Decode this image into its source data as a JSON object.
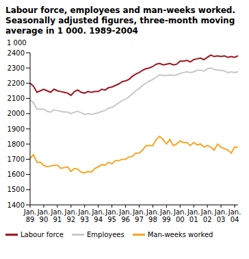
{
  "chart_data": {
    "type": "line",
    "title": "Labour force, employees and man-weeks worked. Seasonally adjusted figures, three-month moving average in 1 000. 1989-2004",
    "y_label": "1 000",
    "categories": [
      "Jan. 89",
      null,
      null,
      null,
      "Jan. 90",
      null,
      null,
      null,
      "Jan. 91",
      null,
      null,
      null,
      "Jan. 92",
      null,
      null,
      null,
      "Jan. 93",
      null,
      null,
      null,
      "Jan. 94",
      null,
      null,
      null,
      "Jan. 95",
      null,
      null,
      null,
      "Jan. 96",
      null,
      null,
      null,
      "Jan. 97",
      null,
      null,
      null,
      "Jan. 98",
      null,
      null,
      null,
      "Jan. 99",
      null,
      null,
      null,
      "Jan. 00",
      null,
      null,
      null,
      "Jan. 01",
      null,
      null,
      null,
      "Jan. 02",
      null,
      null,
      null,
      "Jan. 03",
      null,
      null,
      null,
      "Jan. 04",
      null
    ],
    "series": [
      {
        "name": "Labour force",
        "color": "#a0141e",
        "values": [
          2200,
          2180,
          2140,
          2150,
          2160,
          2150,
          2140,
          2160,
          2150,
          2145,
          2140,
          2135,
          2120,
          2145,
          2155,
          2140,
          2135,
          2145,
          2140,
          2145,
          2145,
          2160,
          2155,
          2170,
          2175,
          2185,
          2195,
          2210,
          2215,
          2225,
          2245,
          2260,
          2270,
          2285,
          2295,
          2300,
          2310,
          2325,
          2330,
          2320,
          2325,
          2330,
          2320,
          2325,
          2345,
          2345,
          2350,
          2340,
          2355,
          2360,
          2365,
          2355,
          2370,
          2385,
          2375,
          2380,
          2375,
          2380,
          2370,
          2375,
          2370,
          2380
        ]
      },
      {
        "name": "Employees",
        "color": "#c8c8c8",
        "values": [
          2090,
          2070,
          2030,
          2030,
          2030,
          2015,
          2010,
          2025,
          2020,
          2015,
          2010,
          2010,
          2000,
          2010,
          2015,
          2005,
          1995,
          2000,
          1995,
          2000,
          2005,
          2015,
          2020,
          2035,
          2040,
          2055,
          2070,
          2085,
          2095,
          2110,
          2130,
          2150,
          2165,
          2185,
          2200,
          2215,
          2225,
          2240,
          2255,
          2250,
          2250,
          2255,
          2250,
          2255,
          2265,
          2270,
          2275,
          2270,
          2275,
          2285,
          2285,
          2280,
          2295,
          2300,
          2290,
          2285,
          2285,
          2280,
          2270,
          2275,
          2270,
          2275
        ]
      },
      {
        "name": "Man-weeks worked",
        "color": "#f5a623",
        "values": [
          1705,
          1730,
          1680,
          1680,
          1660,
          1650,
          1655,
          1660,
          1660,
          1640,
          1645,
          1650,
          1620,
          1640,
          1635,
          1615,
          1610,
          1620,
          1615,
          1640,
          1650,
          1665,
          1660,
          1680,
          1670,
          1690,
          1690,
          1700,
          1700,
          1715,
          1720,
          1740,
          1740,
          1760,
          1790,
          1790,
          1790,
          1830,
          1850,
          1830,
          1800,
          1830,
          1790,
          1800,
          1820,
          1810,
          1810,
          1790,
          1810,
          1795,
          1800,
          1780,
          1790,
          1780,
          1760,
          1800,
          1780,
          1770,
          1760,
          1740,
          1780,
          1780
        ]
      }
    ],
    "ylim": [
      1400,
      2400
    ],
    "yticks": [
      1400,
      1500,
      1600,
      1700,
      1800,
      1900,
      2000,
      2100,
      2200,
      2300,
      2400
    ],
    "grid": false
  }
}
